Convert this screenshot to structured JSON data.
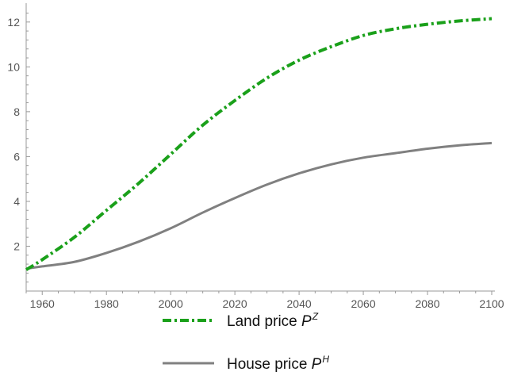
{
  "chart_data": {
    "type": "line",
    "xlim": [
      1955,
      2100
    ],
    "ylim": [
      0,
      12.7
    ],
    "x_ticks": [
      1960,
      1980,
      2000,
      2020,
      2040,
      2060,
      2080,
      2100
    ],
    "y_ticks": [
      2,
      4,
      6,
      8,
      10,
      12
    ],
    "grid": false,
    "legend_position": "bottom",
    "series": [
      {
        "name": "Land price",
        "symbol": "P",
        "superscript": "Z",
        "color": "#1aa01a",
        "dash": "dash-dot",
        "x": [
          1955,
          1960,
          1970,
          1980,
          1990,
          2000,
          2010,
          2020,
          2030,
          2040,
          2050,
          2060,
          2070,
          2080,
          2090,
          2100
        ],
        "y": [
          0.95,
          1.4,
          2.4,
          3.6,
          4.8,
          6.1,
          7.4,
          8.5,
          9.5,
          10.3,
          10.9,
          11.4,
          11.7,
          11.9,
          12.05,
          12.15
        ]
      },
      {
        "name": "House price",
        "symbol": "P",
        "superscript": "H",
        "color": "#808080",
        "dash": "solid",
        "x": [
          1955,
          1960,
          1970,
          1980,
          1990,
          2000,
          2010,
          2020,
          2030,
          2040,
          2050,
          2060,
          2070,
          2080,
          2090,
          2100
        ],
        "y": [
          1.0,
          1.1,
          1.3,
          1.7,
          2.2,
          2.8,
          3.5,
          4.15,
          4.75,
          5.25,
          5.65,
          5.95,
          6.15,
          6.35,
          6.5,
          6.6
        ]
      }
    ]
  }
}
